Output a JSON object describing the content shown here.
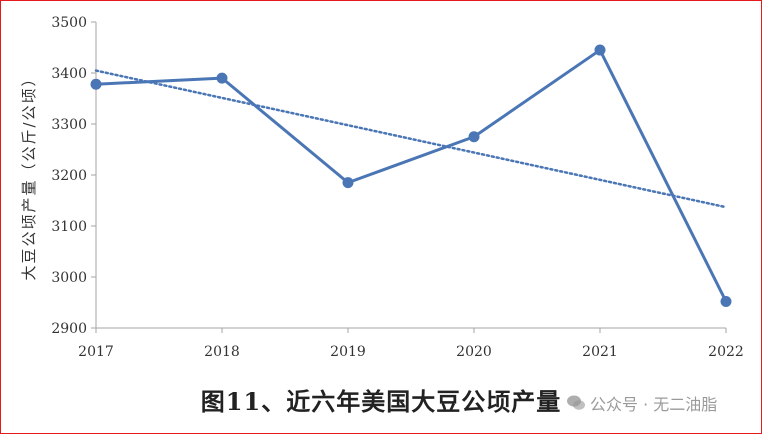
{
  "chart_data": {
    "type": "line",
    "x": [
      "2017",
      "2018",
      "2019",
      "2020",
      "2021",
      "2022"
    ],
    "series": [
      {
        "values": [
          3378,
          3390,
          3185,
          3275,
          3445,
          2952
        ],
        "color": "#4a76b5"
      }
    ],
    "trendline": {
      "type": "linear",
      "style": "dotted",
      "color": "#4a76b5"
    },
    "ylabel": "大豆公顷产量（公斤/公顷）",
    "xlabel": "",
    "ylim": [
      2900,
      3500
    ],
    "yticks": [
      2900,
      3000,
      3100,
      3200,
      3300,
      3400,
      3500
    ],
    "grid": false,
    "legend": "none"
  },
  "caption": "图11、近六年美国大豆公顷产量",
  "watermark": {
    "text": "公众号 · 无二油脂",
    "icon": "wechat-icon"
  },
  "colors": {
    "border": "#e8191d",
    "axis": "#a6a6a6"
  }
}
